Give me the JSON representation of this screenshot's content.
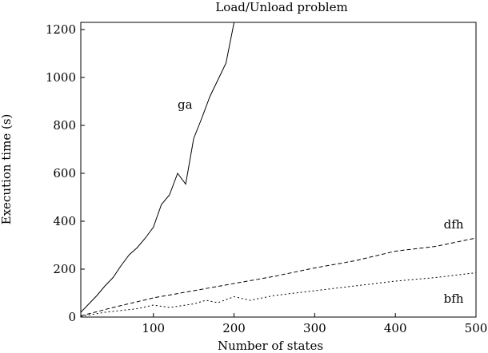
{
  "chart_data": {
    "type": "line",
    "title": "Load/Unload problem",
    "xlabel": "Number of states",
    "ylabel": "Execution time (s)",
    "xlim": [
      10,
      500
    ],
    "ylim": [
      0,
      1230
    ],
    "xticks": [
      100,
      200,
      300,
      400,
      500
    ],
    "yticks": [
      0,
      200,
      400,
      600,
      800,
      1000,
      1200
    ],
    "grid": false,
    "series": [
      {
        "name": "ga",
        "style": "solid",
        "color": "#000000",
        "x": [
          10,
          20,
          30,
          40,
          50,
          60,
          70,
          80,
          90,
          100,
          110,
          120,
          130,
          140,
          150,
          160,
          170,
          180,
          190,
          200,
          210
        ],
        "y": [
          20,
          55,
          90,
          130,
          165,
          215,
          260,
          290,
          330,
          375,
          470,
          510,
          600,
          555,
          745,
          830,
          920,
          990,
          1060,
          1230,
          1260
        ]
      },
      {
        "name": "dfh",
        "style": "dashed",
        "color": "#000000",
        "x": [
          10,
          50,
          100,
          150,
          200,
          250,
          300,
          350,
          400,
          450,
          500
        ],
        "y": [
          5,
          40,
          80,
          110,
          140,
          170,
          205,
          235,
          275,
          295,
          330
        ]
      },
      {
        "name": "bfh",
        "style": "dotted",
        "color": "#000000",
        "x": [
          10,
          40,
          80,
          100,
          120,
          150,
          165,
          180,
          200,
          220,
          250,
          300,
          350,
          400,
          450,
          500
        ],
        "y": [
          3,
          20,
          35,
          50,
          40,
          55,
          70,
          60,
          85,
          70,
          90,
          110,
          130,
          150,
          165,
          185
        ]
      }
    ]
  }
}
